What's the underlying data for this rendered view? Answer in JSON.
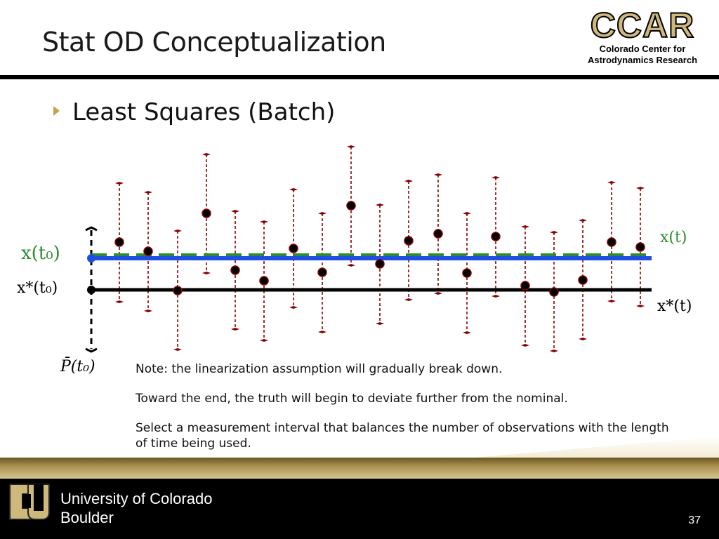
{
  "slide": {
    "title": "Stat OD Conceptualization",
    "bullet": "Least Squares (Batch)",
    "page_number": "37"
  },
  "logo": {
    "name": "CCAR",
    "subtitle_line1": "Colorado Center for",
    "subtitle_line2": "Astrodynamics Research"
  },
  "footer": {
    "university_line1": "University of Colorado",
    "university_line2": "Boulder"
  },
  "notes": [
    "Note: the linearization assumption will gradually break down.",
    "Toward the end, the truth will begin to deviate further from the nominal.",
    "Select a measurement interval that balances the number of observations with the length of time being used."
  ],
  "labels": {
    "x_t0": "x(t₀)",
    "xstar_t0": "x*(t₀)",
    "x_t": "x(t)",
    "xstar_t": "x*(t)",
    "pbar_t0": "P̄(t₀)"
  },
  "colors": {
    "truth": "#1f4fe0",
    "estimate_dashed": "#2e8b2e",
    "nominal": "#000000",
    "error_bar": "#8b0000",
    "accent_gold": "#cfb87c"
  }
}
